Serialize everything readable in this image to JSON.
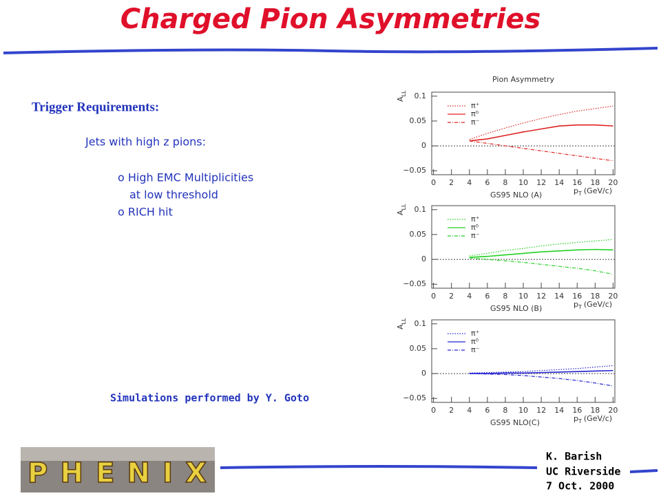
{
  "slide": {
    "title": "Charged Pion Asymmetries",
    "heading": "Trigger Requirements:",
    "lines": [
      "Jets with high z pions:",
      "o High EMC Multiplicities",
      "at low threshold",
      "o RICH hit"
    ],
    "credit": "Simulations performed by Y. Goto",
    "footer": [
      "K. Barish",
      "UC Riverside",
      "7 Oct. 2000"
    ],
    "logo": "PHENIX"
  },
  "chart_data": [
    {
      "type": "line",
      "title": "Pion Asymmetry",
      "caption": "GS95 NLO (A)",
      "y_label": {
        "main": "A",
        "sub": "LL"
      },
      "x_label": {
        "main": "p",
        "sub": "T",
        "unit": "(GeV/c)"
      },
      "x": [
        4,
        6,
        8,
        10,
        12,
        14,
        16,
        18,
        20
      ],
      "series": [
        {
          "name": "π⁺",
          "color": "#e02020",
          "style": "dotted",
          "values": [
            0.013,
            0.025,
            0.036,
            0.046,
            0.055,
            0.063,
            0.07,
            0.075,
            0.08
          ]
        },
        {
          "name": "π⁰",
          "color": "#e02020",
          "style": "solid",
          "values": [
            0.01,
            0.014,
            0.021,
            0.028,
            0.034,
            0.04,
            0.042,
            0.042,
            0.04
          ]
        },
        {
          "name": "π⁻",
          "color": "#e02020",
          "style": "dashdot",
          "values": [
            0.01,
            0.005,
            0.0,
            -0.005,
            -0.01,
            -0.015,
            -0.02,
            -0.025,
            -0.03
          ]
        }
      ],
      "xlim": [
        -0.2,
        20.2
      ],
      "xticks": [
        0,
        2,
        4,
        6,
        8,
        10,
        12,
        14,
        16,
        18,
        20
      ],
      "ylim": [
        -0.058,
        0.108
      ],
      "yticks": [
        {
          "value": -0.05,
          "label": "−0.05"
        },
        0,
        0.05,
        0.1
      ]
    },
    {
      "type": "line",
      "caption": "GS95 NLO (B)",
      "y_label": {
        "main": "A",
        "sub": "LL"
      },
      "x_label": {
        "main": "p",
        "sub": "T",
        "unit": "(GeV/c)"
      },
      "x": [
        4,
        6,
        8,
        10,
        12,
        14,
        16,
        18,
        20
      ],
      "series": [
        {
          "name": "π⁺",
          "color": "#20d020",
          "style": "dotted",
          "values": [
            0.007,
            0.012,
            0.018,
            0.022,
            0.027,
            0.031,
            0.034,
            0.037,
            0.04
          ]
        },
        {
          "name": "π⁰",
          "color": "#20d020",
          "style": "solid",
          "values": [
            0.004,
            0.006,
            0.009,
            0.012,
            0.015,
            0.017,
            0.019,
            0.02,
            0.019
          ]
        },
        {
          "name": "π⁻",
          "color": "#20d020",
          "style": "dashdot",
          "values": [
            0.003,
            0.0,
            -0.003,
            -0.006,
            -0.01,
            -0.014,
            -0.018,
            -0.023,
            -0.03
          ]
        }
      ],
      "xlim": [
        -0.2,
        20.2
      ],
      "xticks": [
        0,
        2,
        4,
        6,
        8,
        10,
        12,
        14,
        16,
        18,
        20
      ],
      "ylim": [
        -0.058,
        0.108
      ],
      "yticks": [
        {
          "value": -0.05,
          "label": "−0.05"
        },
        0,
        0.05,
        0.1
      ]
    },
    {
      "type": "line",
      "caption": "GS95 NLO(C)",
      "y_label": {
        "main": "A",
        "sub": "LL"
      },
      "x_label": {
        "main": "p",
        "sub": "T",
        "unit": "(GeV/c)"
      },
      "x": [
        4,
        6,
        8,
        10,
        12,
        14,
        16,
        18,
        20
      ],
      "series": [
        {
          "name": "π⁺",
          "color": "#2020d0",
          "style": "dotted",
          "values": [
            0.001,
            0.002,
            0.003,
            0.004,
            0.006,
            0.008,
            0.01,
            0.013,
            0.016
          ]
        },
        {
          "name": "π⁰",
          "color": "#2020d0",
          "style": "solid",
          "values": [
            0.0,
            0.0,
            0.001,
            0.001,
            0.002,
            0.003,
            0.004,
            0.005,
            0.006
          ]
        },
        {
          "name": "π⁻",
          "color": "#2020d0",
          "style": "dashdot",
          "values": [
            0.0,
            -0.001,
            -0.002,
            -0.004,
            -0.007,
            -0.01,
            -0.014,
            -0.019,
            -0.025
          ]
        }
      ],
      "xlim": [
        -0.2,
        20.2
      ],
      "xticks": [
        0,
        2,
        4,
        6,
        8,
        10,
        12,
        14,
        16,
        18,
        20
      ],
      "ylim": [
        -0.058,
        0.108
      ],
      "yticks": [
        {
          "value": -0.05,
          "label": "−0.05"
        },
        0,
        0.05,
        0.1
      ]
    }
  ]
}
